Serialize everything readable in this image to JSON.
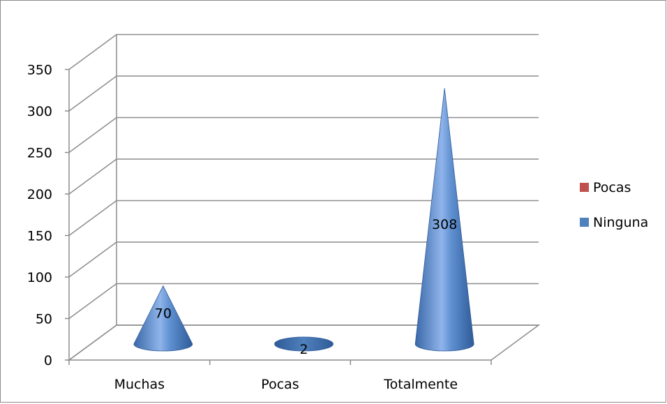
{
  "chart_data": {
    "type": "bar",
    "style": "3d-cone",
    "categories": [
      "Muchas",
      "Pocas",
      "Totalmente"
    ],
    "series": [
      {
        "name": "Pocas",
        "color": "#c0504d",
        "values": [
          0,
          0,
          0
        ]
      },
      {
        "name": "Ninguna",
        "color": "#4f81bd",
        "values": [
          70,
          2,
          308
        ]
      }
    ],
    "data_labels": [
      "70",
      "2",
      "308"
    ],
    "ylim": [
      0,
      350
    ],
    "yticks": [
      0,
      50,
      100,
      150,
      200,
      250,
      300,
      350
    ],
    "grid": true,
    "legend_position": "right"
  }
}
